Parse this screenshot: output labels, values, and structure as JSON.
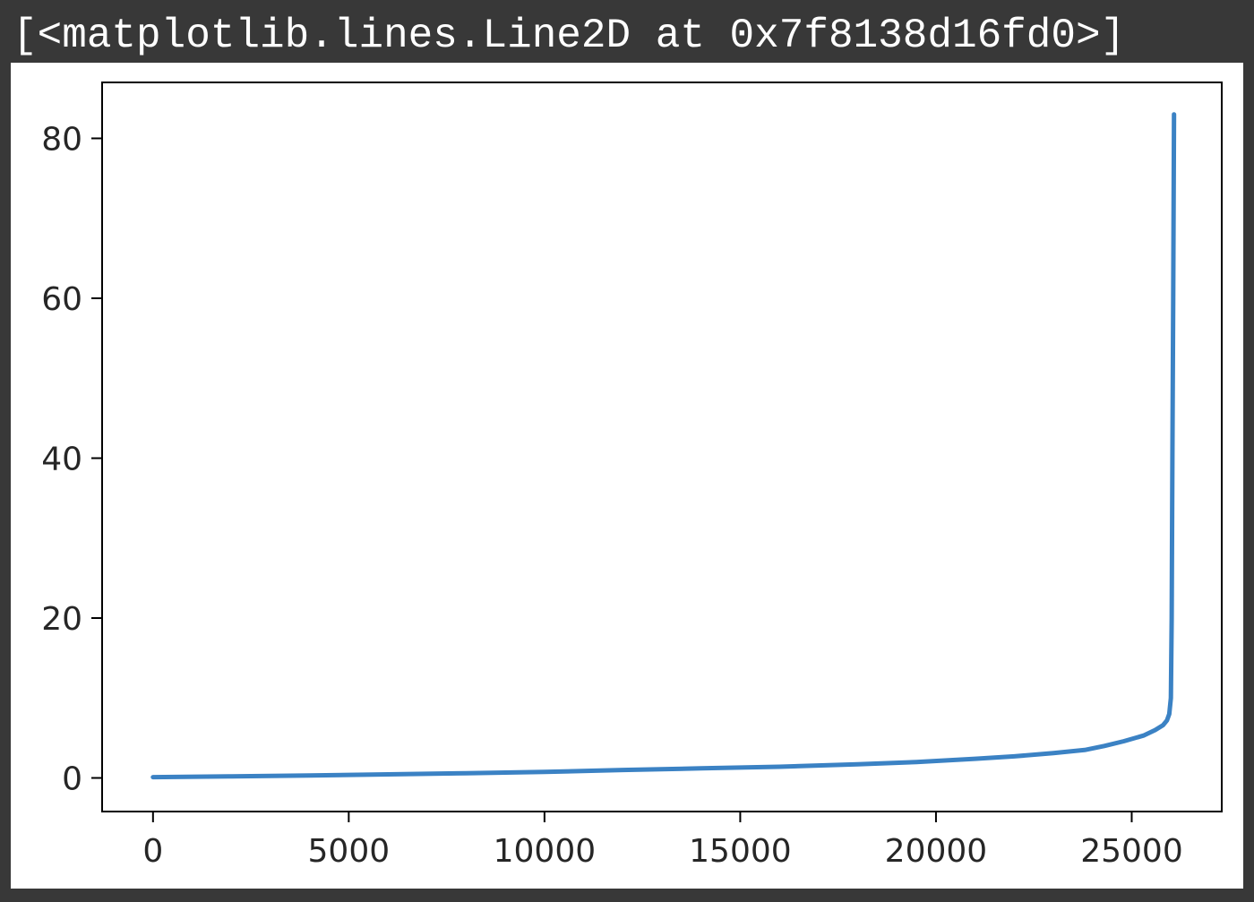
{
  "output_text": "[<matplotlib.lines.Line2D at 0x7f8138d16fd0>]",
  "chart_data": {
    "type": "line",
    "title": "",
    "xlabel": "",
    "ylabel": "",
    "xlim": [
      -1300,
      27300
    ],
    "ylim": [
      -4.2,
      87
    ],
    "xticks": [
      0,
      5000,
      10000,
      15000,
      20000,
      25000
    ],
    "yticks": [
      0,
      20,
      40,
      60,
      80
    ],
    "grid": false,
    "series": [
      {
        "color": "#3b82c4",
        "x": [
          0,
          2000,
          4000,
          6000,
          8000,
          10000,
          12000,
          14000,
          16000,
          18000,
          19500,
          21000,
          22000,
          23000,
          23800,
          24300,
          24800,
          25300,
          25600,
          25800,
          25900,
          25960,
          26000,
          26020,
          26040,
          26060,
          26080
        ],
        "y": [
          0.1,
          0.2,
          0.3,
          0.45,
          0.6,
          0.75,
          1.0,
          1.2,
          1.4,
          1.7,
          2.0,
          2.4,
          2.7,
          3.1,
          3.5,
          4.0,
          4.6,
          5.3,
          6.0,
          6.6,
          7.2,
          8.0,
          10.0,
          20.0,
          40.0,
          60.0,
          83.0
        ]
      }
    ]
  }
}
